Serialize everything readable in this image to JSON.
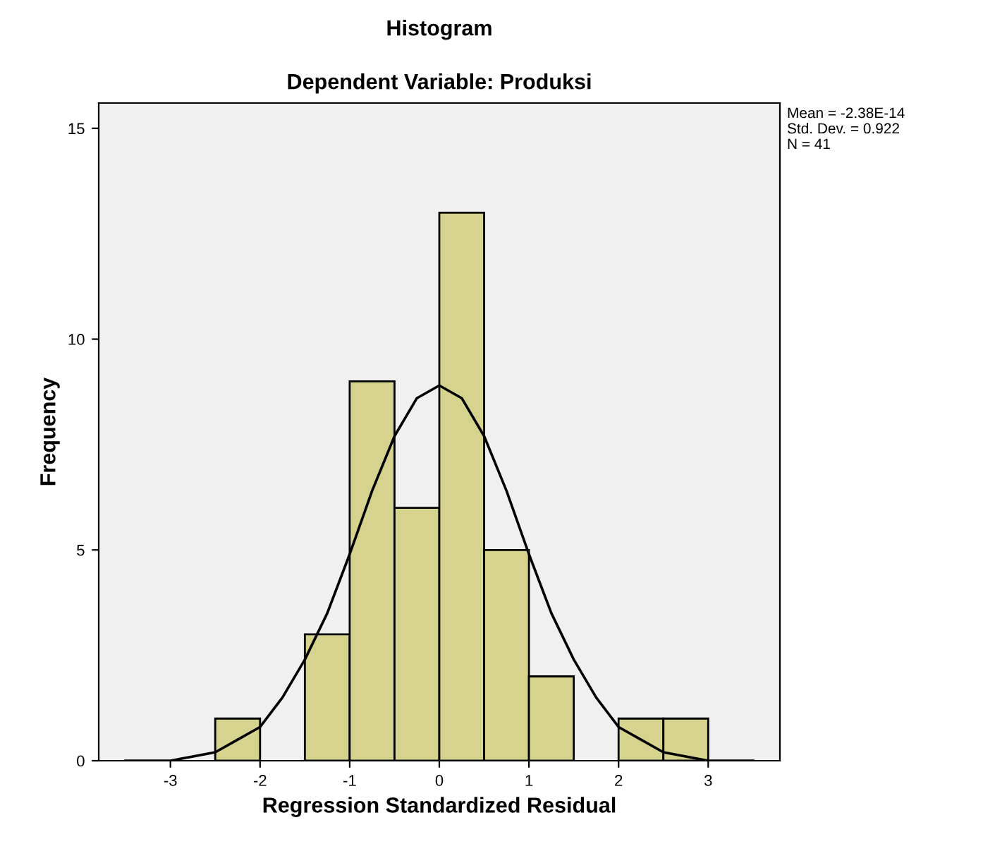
{
  "chart_data": {
    "type": "histogram",
    "title": "Histogram",
    "subtitle": "Dependent Variable: Produksi",
    "xlabel": "Regression Standardized Residual",
    "ylabel": "Frequency",
    "bins": [
      -2.5,
      -2,
      -1.5,
      -1,
      -0.5,
      0,
      0.5,
      1,
      1.5,
      2,
      2.5,
      3
    ],
    "values": [
      1,
      0,
      3,
      9,
      6,
      13,
      5,
      2,
      0,
      1,
      1
    ],
    "color": "#d6d38e",
    "series": [
      {
        "type": "line",
        "color": "#000000",
        "x": [
          -3.5,
          -3.25,
          -3,
          -2.75,
          -2.5,
          -2.25,
          -2,
          -1.75,
          -1.5,
          -1.25,
          -1,
          -0.75,
          -0.5,
          -0.25,
          0,
          0.25,
          0.5,
          0.75,
          1,
          1.25,
          1.5,
          1.75,
          2,
          2.25,
          2.5,
          2.75,
          3,
          3.25,
          3.5
        ],
        "values": [
          0,
          0,
          0,
          0.1,
          0.2,
          0.5,
          0.8,
          1.5,
          2.4,
          3.5,
          4.9,
          6.4,
          7.7,
          8.6,
          8.9,
          8.6,
          7.7,
          6.4,
          4.9,
          3.5,
          2.4,
          1.5,
          0.8,
          0.5,
          0.2,
          0.1,
          0,
          0,
          0
        ]
      }
    ],
    "xlim": [
      -3.8,
      3.8
    ],
    "ylim": [
      0,
      15.6
    ],
    "xticks": [
      {
        "value": -3,
        "label": "-3"
      },
      {
        "value": -2,
        "label": "-2"
      },
      {
        "value": -1,
        "label": "-1"
      },
      0,
      1,
      2,
      3
    ],
    "yticks": [
      0,
      5,
      10,
      15
    ],
    "grid": false,
    "legend": false,
    "annotations": [
      "Mean = -2.38E-14",
      "Std. Dev. = 0.922",
      "N = 41"
    ]
  }
}
